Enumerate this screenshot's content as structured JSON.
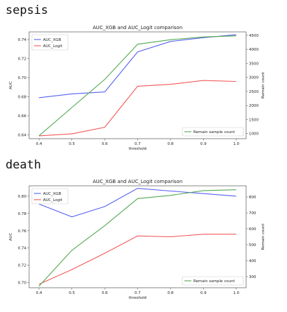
{
  "headings": [
    "sepsis",
    "death"
  ],
  "colors": {
    "xgb": "#5560f0",
    "logit": "#f25757",
    "remain": "#52a852",
    "axis": "#555555"
  },
  "chart_data": [
    {
      "type": "line",
      "title": "AUC_XGB and AUC_Logit comparison",
      "xlabel": "threshold",
      "ylabel": "AUC",
      "y2label": "Remain count",
      "x": [
        0.4,
        0.5,
        0.6,
        0.7,
        0.8,
        0.9,
        1.0
      ],
      "xticks": [
        "0.4",
        "0.5",
        "0.6",
        "0.7",
        "0.8",
        "0.9",
        "1.0"
      ],
      "ylim": [
        0.636,
        0.748
      ],
      "yticks": [
        0.64,
        0.66,
        0.68,
        0.7,
        0.72,
        0.74
      ],
      "ytick_labels": [
        "0.64",
        "0.66",
        "0.68",
        "0.70",
        "0.72",
        "0.74"
      ],
      "y2lim": [
        820,
        4620
      ],
      "y2ticks": [
        1000,
        1500,
        2000,
        2500,
        3000,
        3500,
        4000,
        4500
      ],
      "y2tick_labels": [
        "1000",
        "1500",
        "2000",
        "2500",
        "3000",
        "3500",
        "4000",
        "4500"
      ],
      "series": [
        {
          "name": "AUC_XGB",
          "axis": "left",
          "color_key": "xgb",
          "values": [
            0.679,
            0.683,
            0.685,
            0.727,
            0.738,
            0.742,
            0.745
          ]
        },
        {
          "name": "AUC_Logit",
          "axis": "left",
          "color_key": "logit",
          "values": [
            0.639,
            0.641,
            0.648,
            0.691,
            0.693,
            0.697,
            0.696
          ]
        },
        {
          "name": "Remain sample count",
          "axis": "right",
          "color_key": "remain",
          "values": [
            920,
            1930,
            2930,
            4180,
            4340,
            4440,
            4480
          ]
        }
      ],
      "legend_left": [
        "AUC_XGB",
        "AUC_Logit"
      ],
      "legend_right": [
        "Remain sample count"
      ],
      "legend_placement": [
        "top-left",
        "bottom-right"
      ],
      "grid": false
    },
    {
      "type": "line",
      "title": "AUC_XGB and AUC_Logit comparison",
      "xlabel": "threshold",
      "ylabel": "AUC",
      "y2label": "Remain count",
      "x": [
        0.4,
        0.5,
        0.6,
        0.7,
        0.8,
        0.9,
        1.0
      ],
      "xticks": [
        "0.4",
        "0.5",
        "0.6",
        "0.7",
        "0.8",
        "0.9",
        "1.0"
      ],
      "ylim": [
        0.694,
        0.812
      ],
      "yticks": [
        0.7,
        0.72,
        0.74,
        0.76,
        0.78,
        0.8
      ],
      "ytick_labels": [
        "0.70",
        "0.72",
        "0.74",
        "0.76",
        "0.78",
        "0.80"
      ],
      "y2lim": [
        230,
        870
      ],
      "y2ticks": [
        300,
        400,
        500,
        600,
        700,
        800
      ],
      "y2tick_labels": [
        "300",
        "400",
        "500",
        "600",
        "700",
        "800"
      ],
      "series": [
        {
          "name": "AUC_XGB",
          "axis": "left",
          "color_key": "xgb",
          "values": [
            0.791,
            0.776,
            0.788,
            0.809,
            0.806,
            0.803,
            0.8
          ]
        },
        {
          "name": "AUC_Logit",
          "axis": "left",
          "color_key": "logit",
          "values": [
            0.698,
            0.715,
            0.734,
            0.754,
            0.753,
            0.756,
            0.756
          ]
        },
        {
          "name": "Remain sample count",
          "axis": "right",
          "color_key": "remain",
          "values": [
            240,
            465,
            620,
            790,
            810,
            840,
            845
          ]
        }
      ],
      "legend_left": [
        "AUC_XGB",
        "AUC_Logit"
      ],
      "legend_right": [
        "Remain sample count"
      ],
      "legend_placement": [
        "top-left",
        "bottom-right"
      ],
      "grid": false
    }
  ]
}
